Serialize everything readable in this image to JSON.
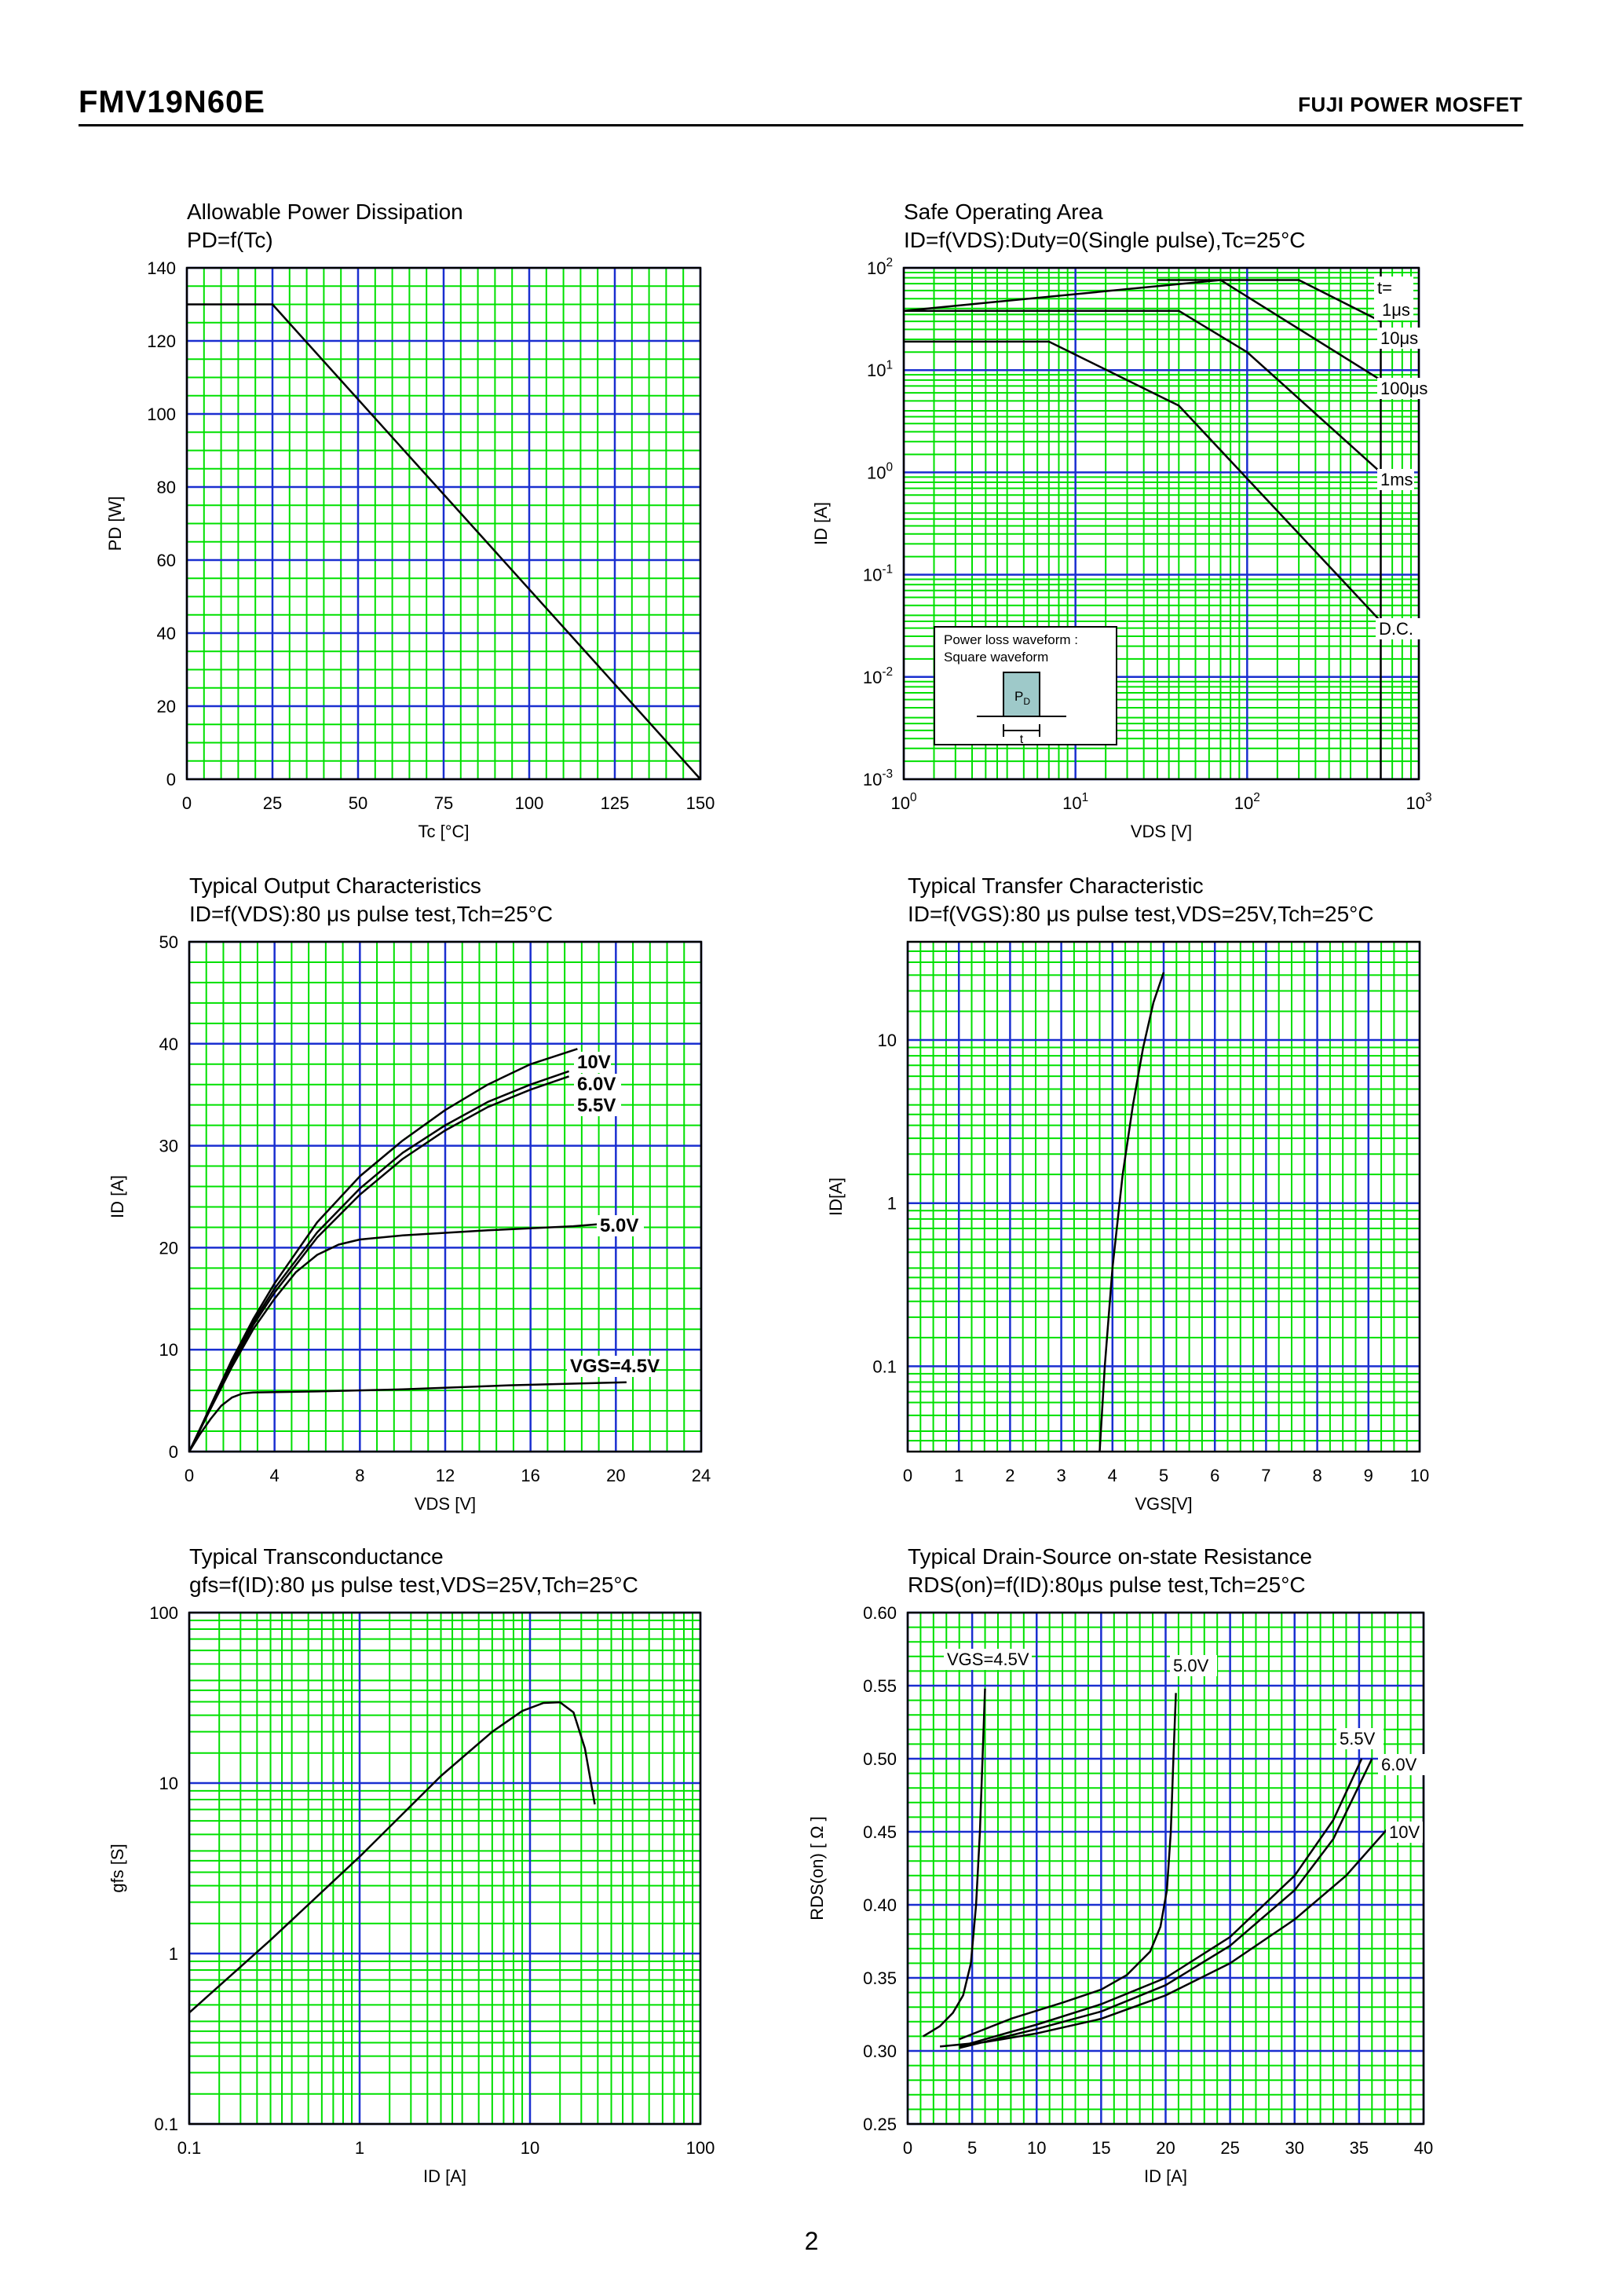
{
  "header": {
    "part_number": "FMV19N60E",
    "brand": "FUJI POWER MOSFET"
  },
  "page_number": "2",
  "colors": {
    "grid_major": "#1a2fd0",
    "grid_minor": "#00e000",
    "curve": "#000000",
    "pulse_fill": "#9ec9c9"
  },
  "chart_data": [
    {
      "id": "power",
      "type": "line",
      "title": "Allowable Power Dissipation",
      "subtitle": "PD=f(Tc)",
      "xlabel": "Tc [°C]",
      "ylabel": "PD [W]",
      "xlim": [
        0,
        150
      ],
      "ylim": [
        0,
        140
      ],
      "xscale": "linear",
      "yscale": "linear",
      "grid": true,
      "x_ticks": [
        "0",
        "25",
        "50",
        "75",
        "100",
        "125",
        "150"
      ],
      "y_ticks": [
        "0",
        "20",
        "40",
        "60",
        "80",
        "100",
        "120",
        "140"
      ],
      "series": [
        {
          "points": [
            [
              0,
              130
            ],
            [
              25,
              130
            ],
            [
              150,
              0
            ]
          ]
        }
      ]
    },
    {
      "id": "soa",
      "type": "line",
      "title": "Safe Operating Area",
      "subtitle": "ID=f(VDS):Duty=0(Single pulse),Tc=25°C",
      "xlabel": "VDS [V]",
      "ylabel": "ID [A]",
      "xlim": [
        1,
        1000
      ],
      "ylim": [
        0.001,
        100
      ],
      "xscale": "log",
      "yscale": "log",
      "grid": true,
      "x_ticks": [
        {
          "base": "10",
          "exp": "0"
        },
        {
          "base": "10",
          "exp": "1"
        },
        {
          "base": "10",
          "exp": "2"
        },
        {
          "base": "10",
          "exp": "3"
        }
      ],
      "y_ticks": [
        {
          "base": "10",
          "exp": "-3"
        },
        {
          "base": "10",
          "exp": "-2"
        },
        {
          "base": "10",
          "exp": "-1"
        },
        {
          "base": "10",
          "exp": "0"
        },
        {
          "base": "10",
          "exp": "1"
        },
        {
          "base": "10",
          "exp": "2"
        }
      ],
      "vds_limit_v": 600,
      "series": [
        {
          "name": "t=1μs",
          "points": [
            [
              30,
              76
            ],
            [
              200,
              76
            ],
            [
              600,
              30
            ]
          ]
        },
        {
          "name": "10μs",
          "points": [
            [
              1,
              38
            ],
            [
              70,
              76
            ],
            [
              600,
              8
            ]
          ]
        },
        {
          "name": "100μs",
          "points": [
            [
              1,
              38
            ],
            [
              40,
              38
            ],
            [
              100,
              15
            ],
            [
              600,
              1
            ]
          ]
        },
        {
          "name": "1ms",
          "points": [
            [
              1,
              19
            ],
            [
              7,
              19
            ],
            [
              40,
              4.5
            ],
            [
              600,
              0.035
            ]
          ]
        },
        {
          "name": "D.C.",
          "points": []
        }
      ],
      "inset": {
        "line1": "Power loss waveform :",
        "line2": "Square waveform",
        "pulse_label": "PD",
        "width_label": "t"
      }
    },
    {
      "id": "output",
      "type": "line",
      "title": "Typical Output Characteristics",
      "subtitle": "ID=f(VDS):80 μs pulse test,Tch=25°C",
      "xlabel": "VDS [V]",
      "ylabel": "ID [A]",
      "xlim": [
        0,
        24
      ],
      "ylim": [
        0,
        50
      ],
      "xscale": "linear",
      "yscale": "linear",
      "grid": true,
      "x_ticks": [
        "0",
        "4",
        "8",
        "12",
        "16",
        "20",
        "24"
      ],
      "y_ticks": [
        "0",
        "10",
        "20",
        "30",
        "40",
        "50"
      ],
      "series": [
        {
          "name": "10V",
          "points": [
            [
              0,
              0
            ],
            [
              0.5,
              2.2
            ],
            [
              1,
              4.5
            ],
            [
              2,
              9
            ],
            [
              3,
              13
            ],
            [
              4,
              16.5
            ],
            [
              6,
              22.5
            ],
            [
              8,
              27
            ],
            [
              10,
              30.5
            ],
            [
              12,
              33.5
            ],
            [
              14,
              36
            ],
            [
              16,
              38
            ],
            [
              18.2,
              39.5
            ]
          ]
        },
        {
          "name": "6.0V",
          "points": [
            [
              0,
              0
            ],
            [
              0.5,
              2.2
            ],
            [
              1,
              4.4
            ],
            [
              2,
              8.8
            ],
            [
              3,
              12.7
            ],
            [
              4,
              16
            ],
            [
              6,
              21.5
            ],
            [
              8,
              25.8
            ],
            [
              10,
              29.3
            ],
            [
              12,
              32
            ],
            [
              14,
              34.3
            ],
            [
              16,
              36
            ],
            [
              17.8,
              37.3
            ]
          ]
        },
        {
          "name": "5.5V",
          "points": [
            [
              0,
              0
            ],
            [
              0.5,
              2.2
            ],
            [
              1,
              4.3
            ],
            [
              2,
              8.6
            ],
            [
              3,
              12.4
            ],
            [
              4,
              15.6
            ],
            [
              6,
              21
            ],
            [
              8,
              25.2
            ],
            [
              10,
              28.7
            ],
            [
              12,
              31.5
            ],
            [
              14,
              33.8
            ],
            [
              16,
              35.5
            ],
            [
              17.8,
              36.8
            ]
          ]
        },
        {
          "name": "5.0V",
          "points": [
            [
              0,
              0
            ],
            [
              1,
              4.2
            ],
            [
              2,
              8.3
            ],
            [
              3,
              12
            ],
            [
              4,
              15
            ],
            [
              5,
              17.6
            ],
            [
              6,
              19.3
            ],
            [
              7,
              20.3
            ],
            [
              8,
              20.8
            ],
            [
              10,
              21.2
            ],
            [
              14,
              21.7
            ],
            [
              18,
              22.1
            ],
            [
              19.2,
              22.3
            ]
          ]
        },
        {
          "name": "VGS=4.5V",
          "points": [
            [
              0,
              0
            ],
            [
              0.5,
              1.7
            ],
            [
              1,
              3.2
            ],
            [
              1.5,
              4.5
            ],
            [
              2,
              5.3
            ],
            [
              2.5,
              5.7
            ],
            [
              3,
              5.8
            ],
            [
              6,
              5.9
            ],
            [
              10,
              6.1
            ],
            [
              15,
              6.5
            ],
            [
              20.5,
              6.8
            ]
          ]
        }
      ]
    },
    {
      "id": "transfer",
      "type": "line",
      "title": "Typical Transfer Characteristic",
      "subtitle": "ID=f(VGS):80 μs pulse test,VDS=25V,Tch=25°C",
      "xlabel": "VGS[V]",
      "ylabel": "ID[A]",
      "xlim": [
        0,
        10
      ],
      "ylim": [
        0.03,
        40
      ],
      "xscale": "linear",
      "yscale": "log",
      "grid": true,
      "x_ticks": [
        "0",
        "1",
        "2",
        "3",
        "4",
        "5",
        "6",
        "7",
        "8",
        "9",
        "10"
      ],
      "y_ticks": [
        {
          "value": 0.1,
          "label": "0.1"
        },
        {
          "value": 1,
          "label": "1"
        },
        {
          "value": 10,
          "label": "10"
        }
      ],
      "series": [
        {
          "points": [
            [
              3.75,
              0.03
            ],
            [
              3.85,
              0.1
            ],
            [
              4.0,
              0.4
            ],
            [
              4.2,
              1.5
            ],
            [
              4.4,
              4
            ],
            [
              4.6,
              9
            ],
            [
              4.8,
              17
            ],
            [
              5.0,
              26
            ]
          ]
        }
      ]
    },
    {
      "id": "gfs",
      "type": "line",
      "title": "Typical Transconductance",
      "subtitle": "gfs=f(ID):80 μs pulse test,VDS=25V,Tch=25°C",
      "xlabel": "ID [A]",
      "ylabel": "gfs [S]",
      "xlim": [
        0.1,
        100
      ],
      "ylim": [
        0.1,
        100
      ],
      "xscale": "log",
      "yscale": "log",
      "grid": true,
      "x_ticks": [
        {
          "value": 0.1,
          "label": "0.1"
        },
        {
          "value": 1,
          "label": "1"
        },
        {
          "value": 10,
          "label": "10"
        },
        {
          "value": 100,
          "label": "100"
        }
      ],
      "y_ticks": [
        {
          "value": 0.1,
          "label": "0.1"
        },
        {
          "value": 1,
          "label": "1"
        },
        {
          "value": 10,
          "label": "10"
        },
        {
          "value": 100,
          "label": "100"
        }
      ],
      "series": [
        {
          "points": [
            [
              0.1,
              0.45
            ],
            [
              0.3,
              1.2
            ],
            [
              1,
              3.7
            ],
            [
              3,
              11
            ],
            [
              6,
              20
            ],
            [
              9,
              26.5
            ],
            [
              12,
              29.5
            ],
            [
              15,
              29.8
            ],
            [
              18,
              26
            ],
            [
              21,
              16
            ],
            [
              24,
              7.5
            ]
          ]
        }
      ]
    },
    {
      "id": "rdson",
      "type": "line",
      "title": "Typical Drain-Source on-state Resistance",
      "subtitle": "RDS(on)=f(ID):80μs pulse test,Tch=25°C",
      "xlabel": "ID [A]",
      "ylabel": "RDS(on) [ Ω ]",
      "xlim": [
        0,
        40
      ],
      "ylim": [
        0.25,
        0.6
      ],
      "xscale": "linear",
      "yscale": "linear",
      "grid": true,
      "x_ticks": [
        "0",
        "5",
        "10",
        "15",
        "20",
        "25",
        "30",
        "35",
        "40"
      ],
      "y_ticks": [
        "0.25",
        "0.30",
        "0.35",
        "0.40",
        "0.45",
        "0.50",
        "0.55",
        "0.60"
      ],
      "series": [
        {
          "name": "VGS=4.5V",
          "points": [
            [
              1.2,
              0.31
            ],
            [
              2.5,
              0.317
            ],
            [
              3.5,
              0.326
            ],
            [
              4.3,
              0.338
            ],
            [
              4.9,
              0.36
            ],
            [
              5.3,
              0.4
            ],
            [
              5.6,
              0.45
            ],
            [
              5.8,
              0.5
            ],
            [
              6.0,
              0.548
            ]
          ]
        },
        {
          "name": "5.0V",
          "points": [
            [
              4,
              0.308
            ],
            [
              8,
              0.322
            ],
            [
              12,
              0.333
            ],
            [
              15,
              0.342
            ],
            [
              17,
              0.352
            ],
            [
              18.8,
              0.368
            ],
            [
              19.6,
              0.385
            ],
            [
              20.1,
              0.41
            ],
            [
              20.4,
              0.45
            ],
            [
              20.6,
              0.5
            ],
            [
              20.8,
              0.545
            ]
          ]
        },
        {
          "name": "5.5V",
          "points": [
            [
              4,
              0.303
            ],
            [
              10,
              0.318
            ],
            [
              15,
              0.332
            ],
            [
              20,
              0.35
            ],
            [
              25,
              0.378
            ],
            [
              30,
              0.42
            ],
            [
              33,
              0.458
            ],
            [
              35.2,
              0.5
            ]
          ]
        },
        {
          "name": "6.0V",
          "points": [
            [
              4,
              0.302
            ],
            [
              10,
              0.315
            ],
            [
              15,
              0.327
            ],
            [
              20,
              0.345
            ],
            [
              25,
              0.372
            ],
            [
              30,
              0.41
            ],
            [
              33,
              0.445
            ],
            [
              36,
              0.5
            ]
          ]
        },
        {
          "name": "10V",
          "points": [
            [
              2.5,
              0.303
            ],
            [
              6,
              0.306
            ],
            [
              10,
              0.312
            ],
            [
              15,
              0.322
            ],
            [
              20,
              0.338
            ],
            [
              25,
              0.36
            ],
            [
              30,
              0.39
            ],
            [
              34,
              0.42
            ],
            [
              37.3,
              0.453
            ]
          ]
        }
      ]
    }
  ]
}
